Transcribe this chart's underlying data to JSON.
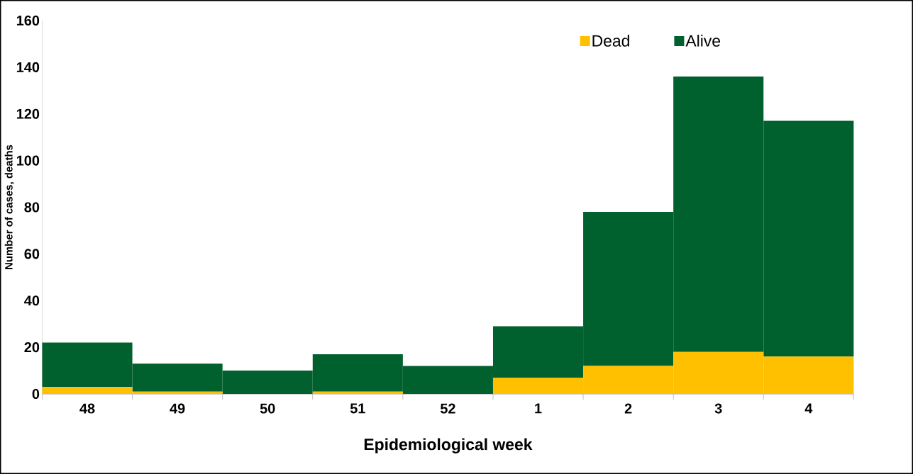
{
  "chart_data": {
    "type": "bar",
    "stacked": true,
    "xlabel": "Epidemiological week",
    "ylabel": "Number of cases, deaths",
    "categories": [
      "48",
      "49",
      "50",
      "51",
      "52",
      "1",
      "2",
      "3",
      "4"
    ],
    "series": [
      {
        "name": "Dead",
        "color": "#ffc000",
        "values": [
          3,
          1,
          0,
          1,
          0,
          7,
          12,
          18,
          16
        ]
      },
      {
        "name": "Alive",
        "color": "#00602e",
        "values": [
          19,
          12,
          10,
          16,
          12,
          22,
          66,
          118,
          101
        ]
      }
    ],
    "ylim": [
      0,
      160
    ],
    "yticks": [
      0,
      20,
      40,
      60,
      80,
      100,
      120,
      140,
      160
    ],
    "legend": "top right"
  }
}
